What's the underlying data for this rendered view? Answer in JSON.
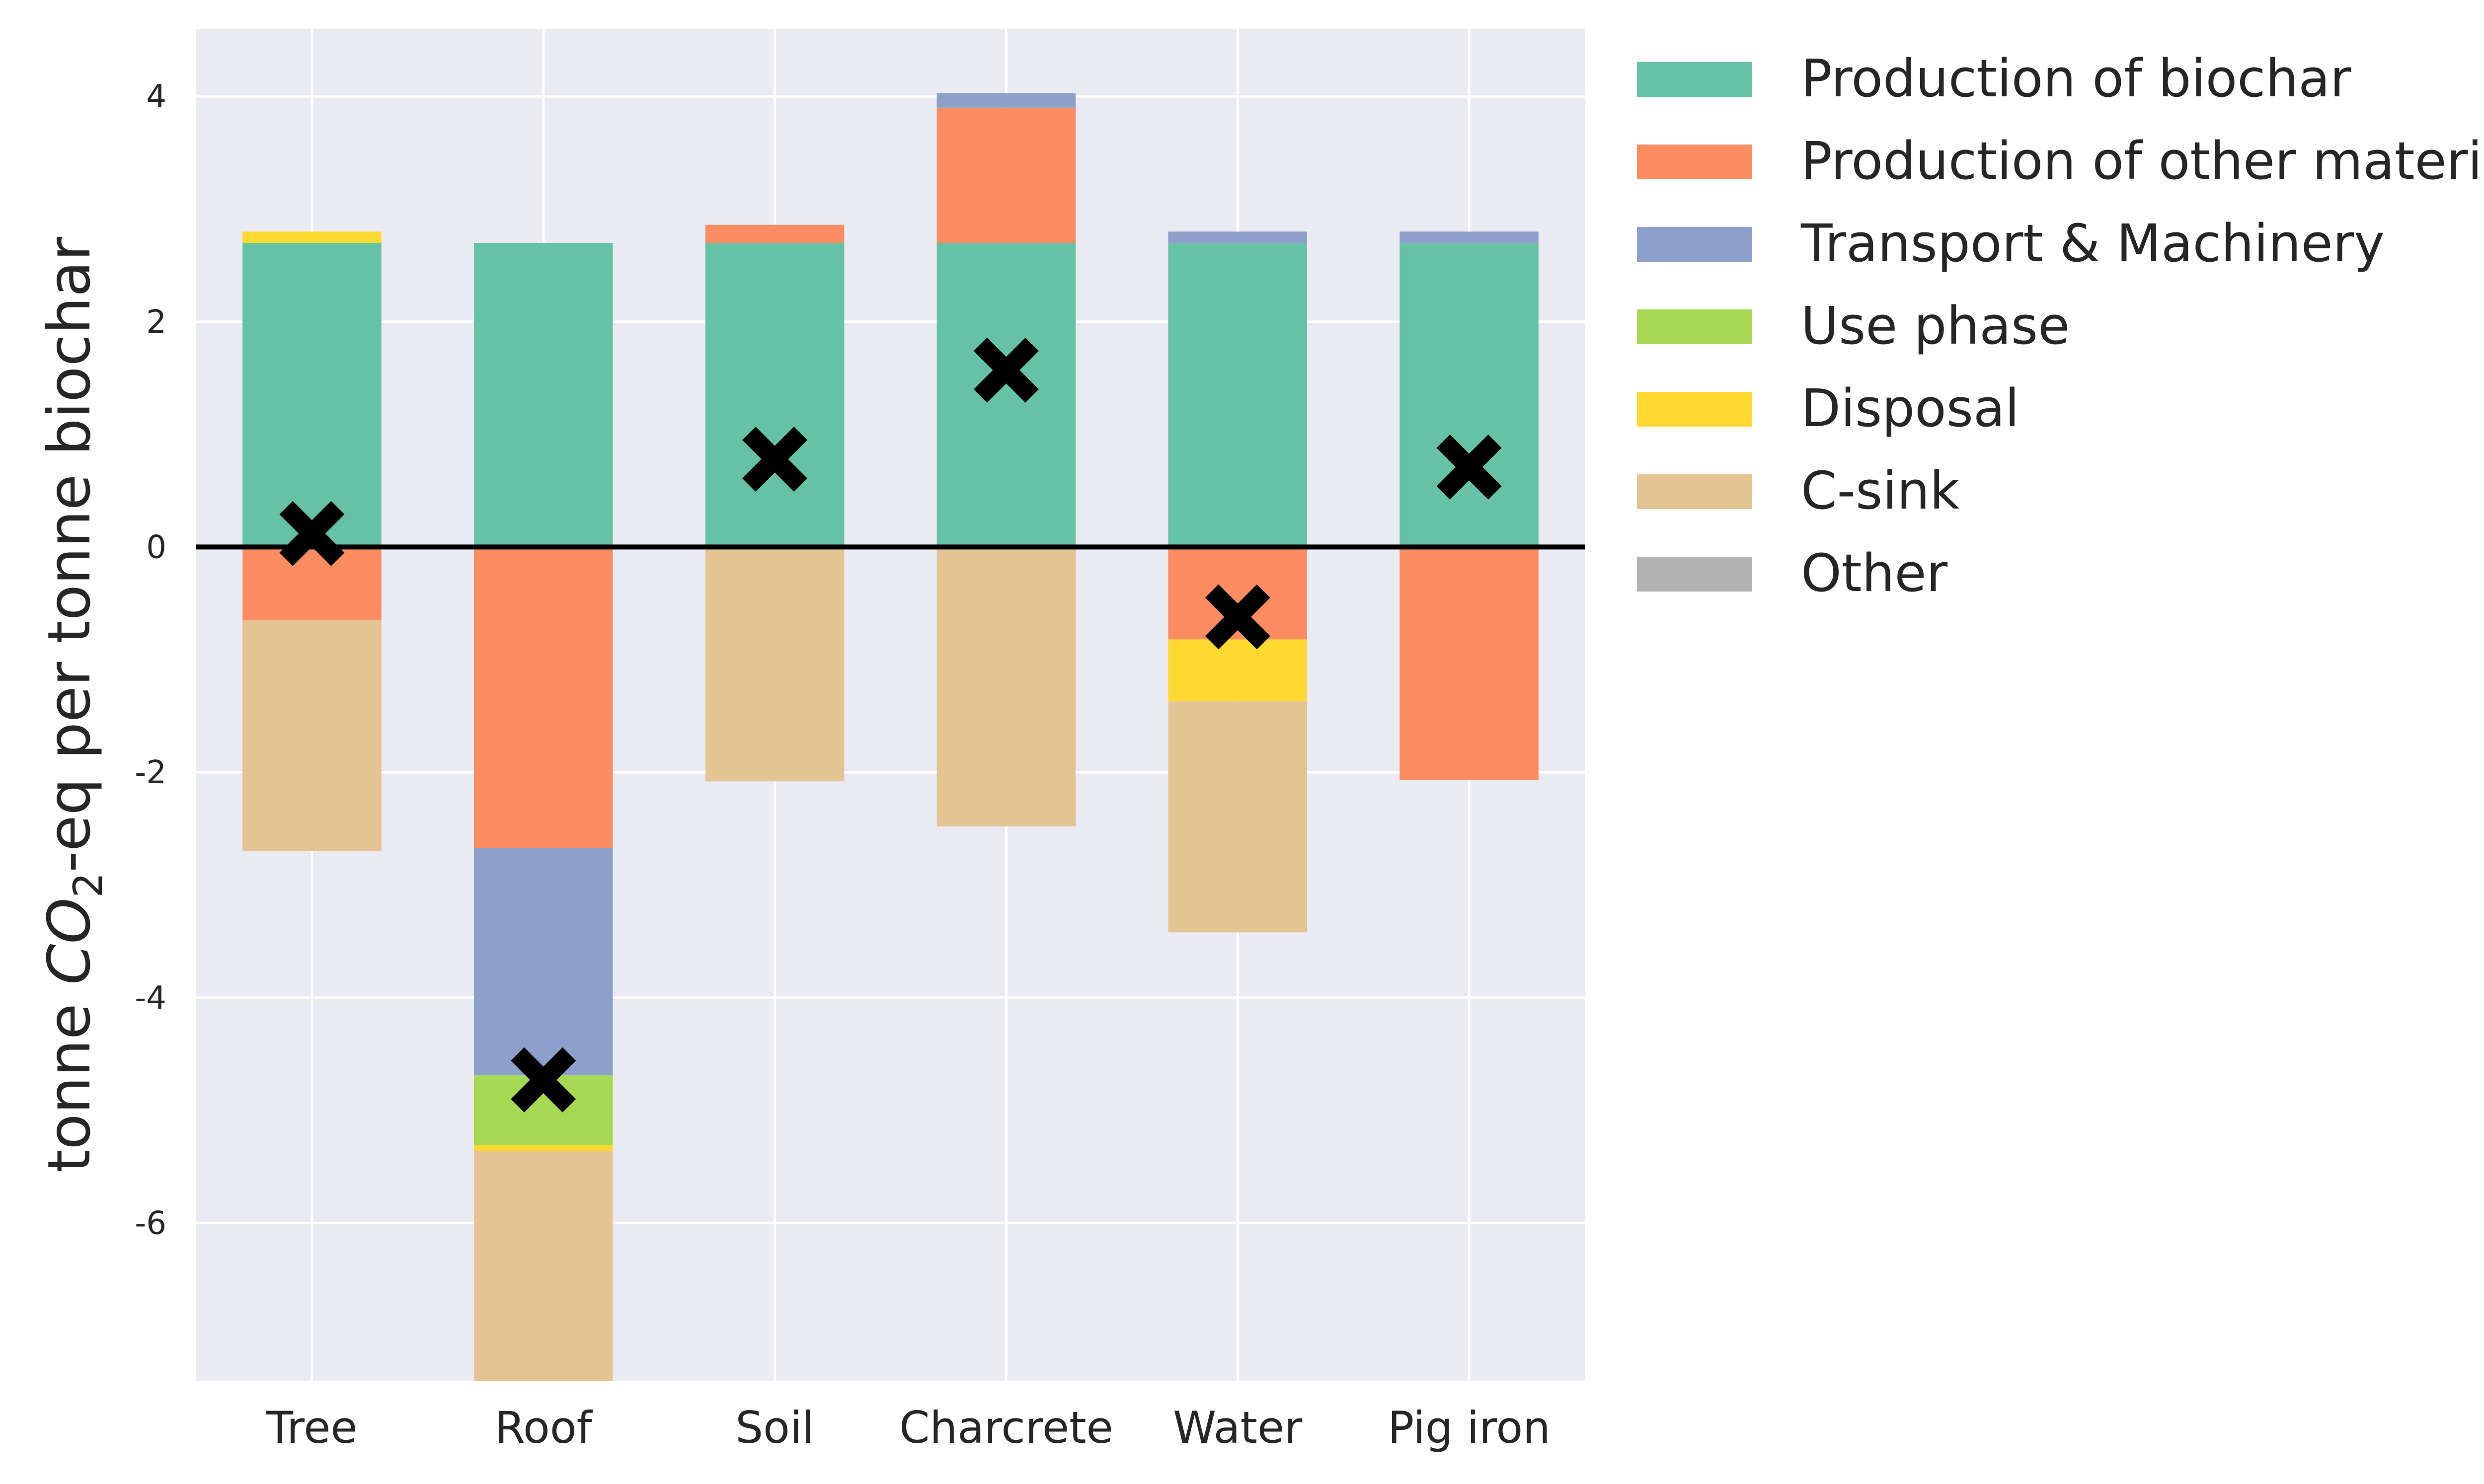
{
  "chart_data": {
    "type": "bar",
    "stacked": true,
    "categories": [
      "Tree",
      "Roof",
      "Soil",
      "Charcrete",
      "Water",
      "Pig iron"
    ],
    "ylabel_parts": {
      "prefix": "tonne ",
      "italic": "CO",
      "sub": "2",
      "suffix": "-eq per tonne biochar"
    },
    "ylim": [
      -7.4,
      4.6
    ],
    "yticks": [
      4,
      2,
      0,
      -2,
      -4,
      -6
    ],
    "grid": true,
    "legend_position": "outside-right",
    "series": [
      {
        "name": "Production of biochar",
        "color": "#66c2a5",
        "values": [
          2.7,
          2.7,
          2.7,
          2.7,
          2.7,
          2.7
        ]
      },
      {
        "name": "Production of other materials",
        "color": "#fc8d62",
        "values": [
          -0.65,
          -2.67,
          0.16,
          1.2,
          -0.82,
          -2.07
        ]
      },
      {
        "name": "Transport & Machinery",
        "color": "#8da0cb",
        "values": [
          0.0,
          -2.02,
          0.0,
          0.13,
          0.1,
          0.1
        ]
      },
      {
        "name": "Use phase",
        "color": "#a6d854",
        "values": [
          0.0,
          -0.62,
          0.0,
          0.0,
          0.0,
          0.0
        ]
      },
      {
        "name": "Disposal",
        "color": "#ffd92f",
        "values": [
          0.1,
          -0.05,
          0.0,
          0.0,
          -0.55,
          0.0
        ]
      },
      {
        "name": "C-sink",
        "color": "#e5c494",
        "values": [
          -2.05,
          -2.04,
          -2.08,
          -2.48,
          -2.05,
          0.0
        ]
      },
      {
        "name": "Other",
        "color": "#b3b3b3",
        "values": [
          0.0,
          0.0,
          0.0,
          0.0,
          0.0,
          0.0
        ]
      }
    ],
    "net_markers": [
      0.12,
      -4.73,
      0.78,
      1.57,
      -0.62,
      0.71
    ]
  }
}
